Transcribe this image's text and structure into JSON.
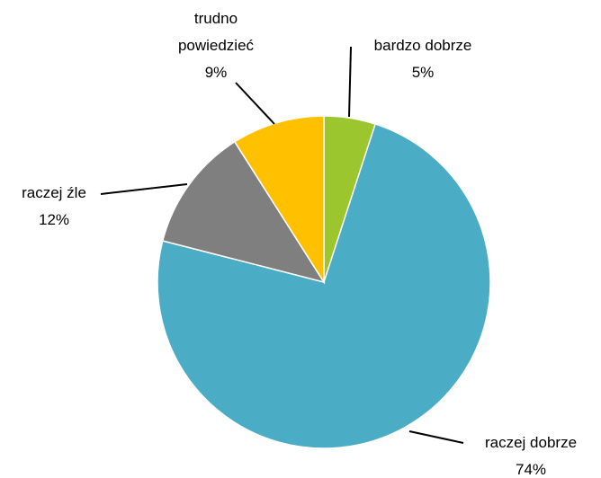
{
  "chart_data": {
    "type": "pie",
    "categories": [
      "bardzo dobrze",
      "raczej dobrze",
      "raczej źle",
      "trudno powiedzieć"
    ],
    "values": [
      5,
      74,
      12,
      9
    ],
    "value_labels": [
      "5%",
      "74%",
      "12%",
      "9%"
    ],
    "colors": [
      "#9bc62e",
      "#4bacc6",
      "#7f7f7f",
      "#ffc000"
    ]
  }
}
